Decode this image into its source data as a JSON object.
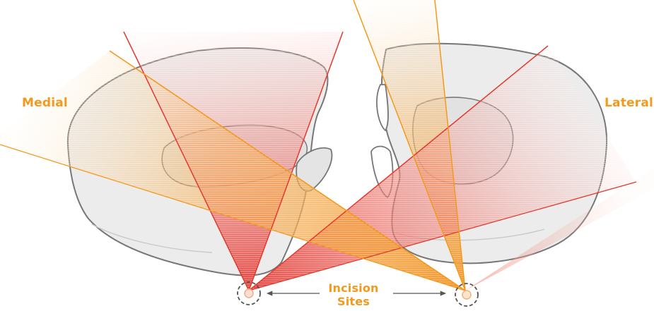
{
  "labels": {
    "medial": "Medial",
    "lateral": "Lateral",
    "incision_line1": "Incision",
    "incision_line2": "Sites"
  },
  "colors": {
    "accent_orange": "#f39a1e",
    "accent_red": "#e23a2e",
    "bone_outline": "#777777",
    "bone_fill": "#ebebeb",
    "arrow": "#555555"
  },
  "icons": {
    "arrow": "double-headed-arrow-icon",
    "incision": "dashed-circle-icon"
  }
}
